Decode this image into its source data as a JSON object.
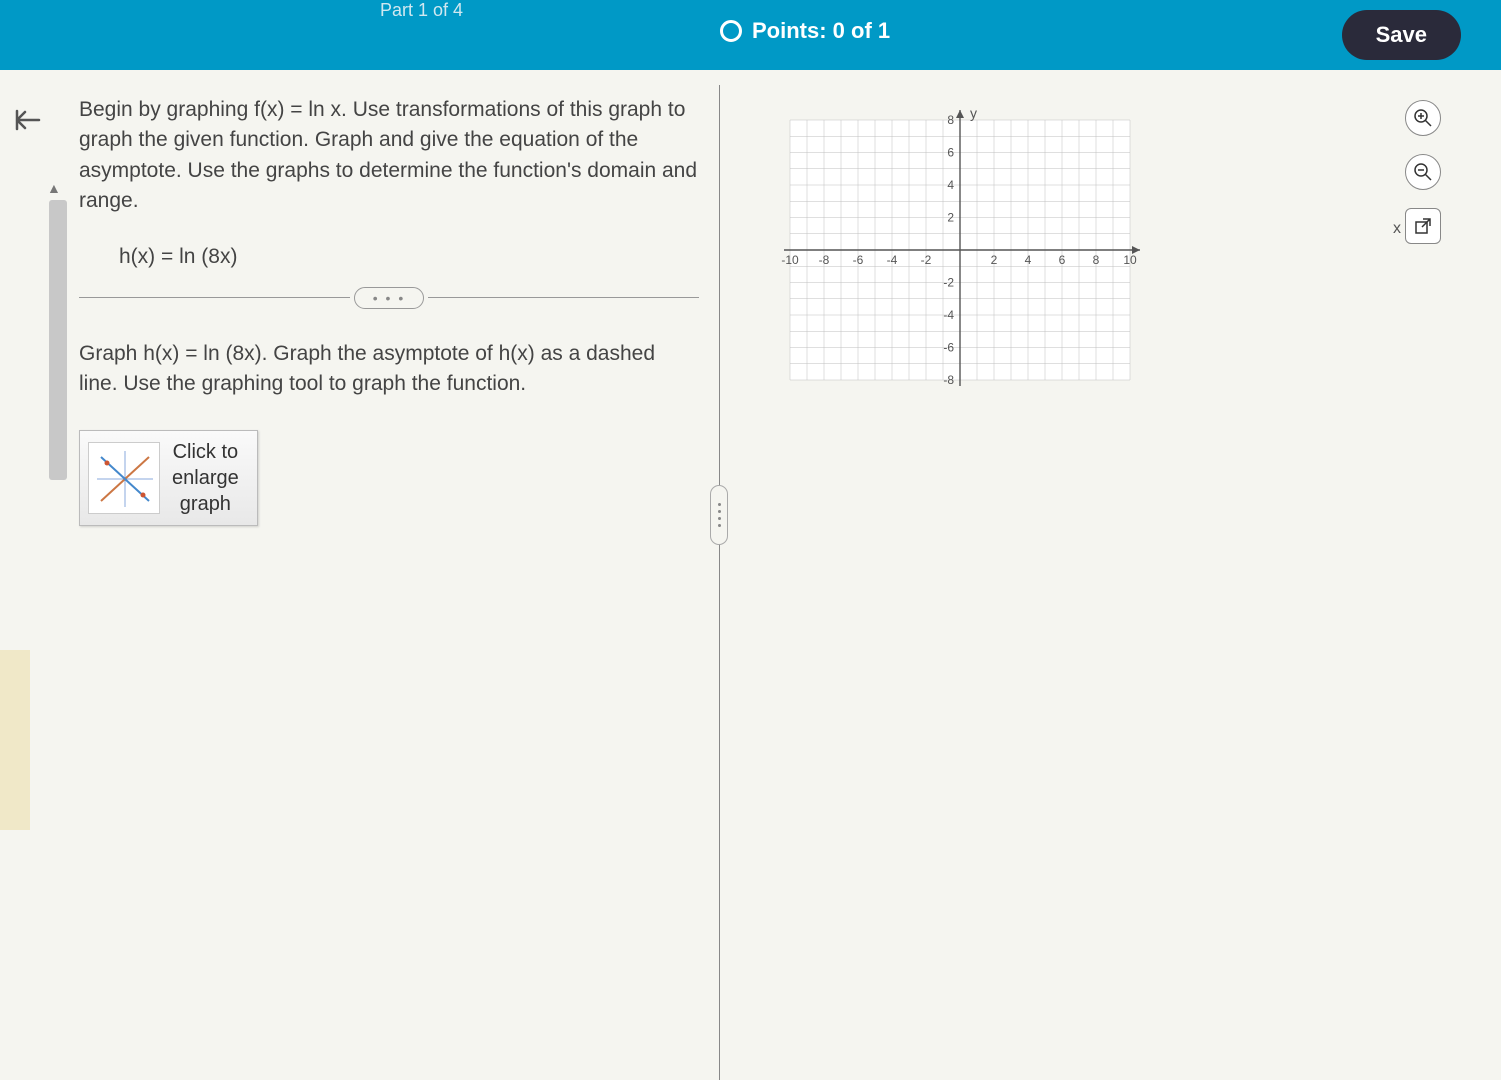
{
  "topbar": {
    "part_indicator": "Part 1 of 4",
    "points_label": "Points: 0 of 1",
    "save_label": "Save"
  },
  "problem": {
    "intro": "Begin by graphing f(x) = ln x. Use transformations of this graph to graph the given function. Graph and give the equation of the asymptote. Use the graphs to determine the function's domain and range.",
    "equation": "h(x) = ln (8x)",
    "instruction": "Graph h(x) = ln (8x). Graph the asymptote of h(x) as a dashed line. Use the graphing tool to graph the function.",
    "enlarge_label": "Click to\nenlarge\ngraph"
  },
  "graph": {
    "x_axis_label": "x",
    "y_axis_label": "y",
    "xlim": [
      -10,
      10
    ],
    "ylim": [
      -8,
      8
    ],
    "xtick_step": 2,
    "ytick_step": 2,
    "xticks": [
      -10,
      -8,
      -6,
      -4,
      -2,
      2,
      4,
      6,
      8,
      10
    ],
    "yticks": [
      -8,
      -6,
      -4,
      -2,
      2,
      4,
      6,
      8
    ],
    "grid_color": "#bfbfbf",
    "axis_color": "#555555",
    "background_color": "#ffffff",
    "tick_fontsize": 12,
    "tick_color": "#555555"
  },
  "tools": {
    "zoom_in": "zoom-in",
    "zoom_out": "zoom-out",
    "popout": "popout"
  },
  "colors": {
    "topbar_bg": "#0099c6",
    "save_bg": "#2a2a3a",
    "page_bg": "#f5f5f0"
  }
}
